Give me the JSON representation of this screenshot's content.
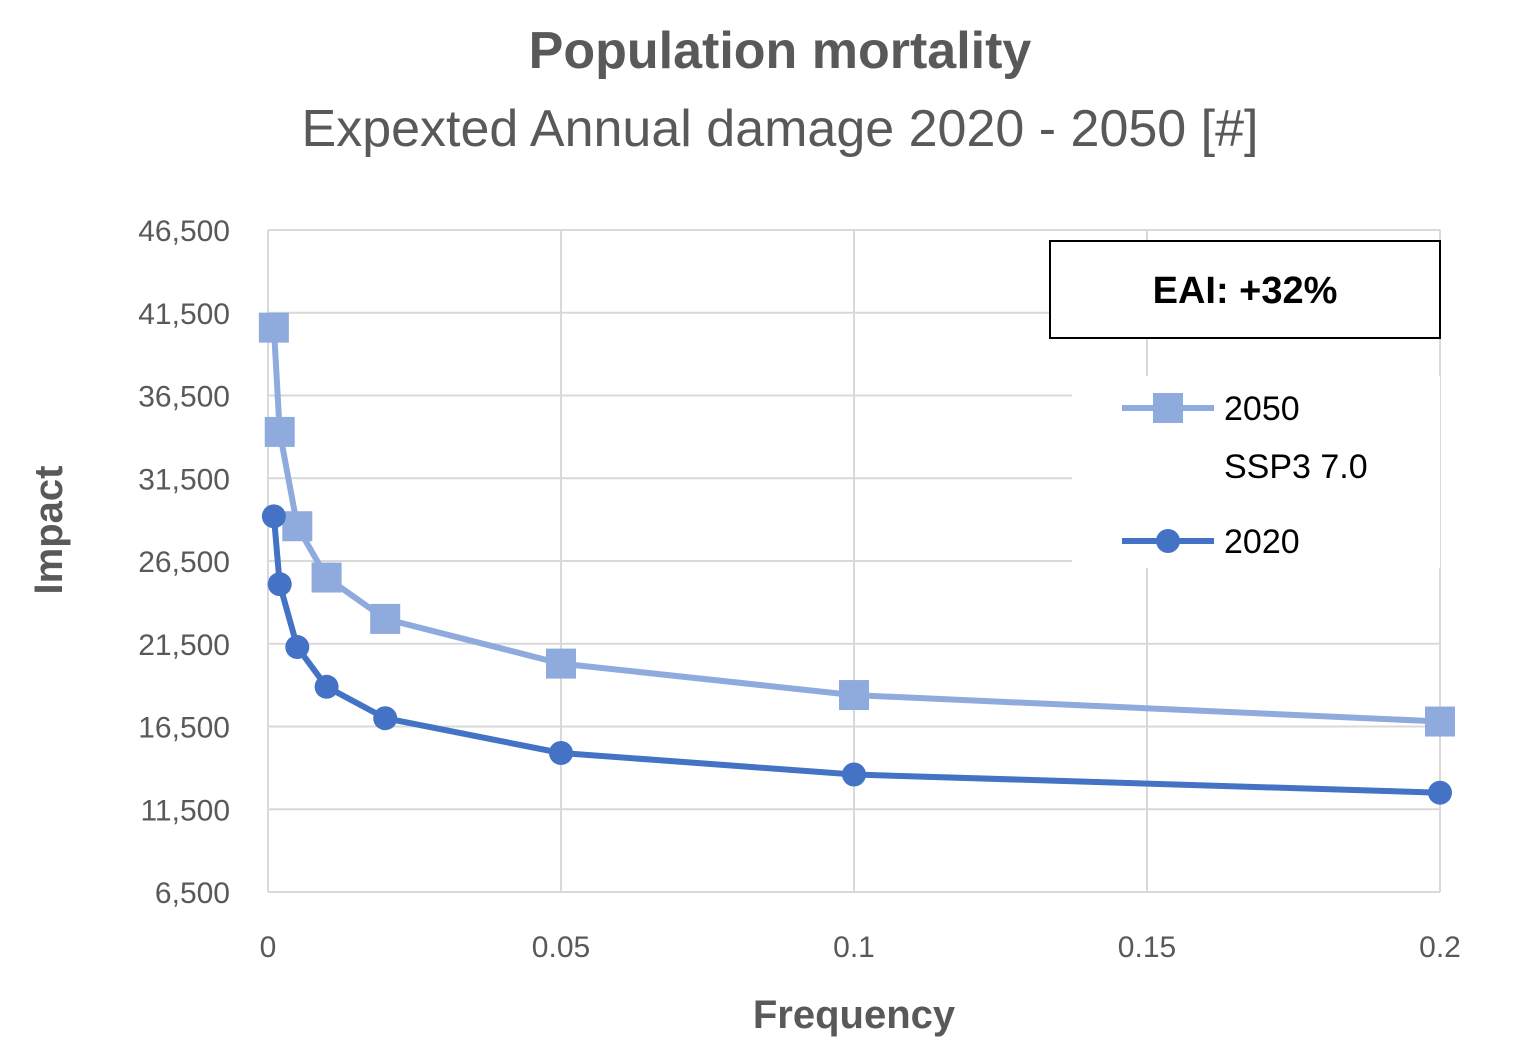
{
  "chart_data": {
    "type": "line",
    "title": "Population mortality",
    "subtitle": "Expexted Annual damage 2020 - 2050 [#]",
    "xlabel": "Frequency",
    "ylabel": "Impact",
    "xlim": [
      0,
      0.2
    ],
    "ylim": [
      6500,
      46500
    ],
    "x_ticks": [
      0,
      0.05,
      0.1,
      0.15,
      0.2
    ],
    "x_tick_labels": [
      "0",
      "0.05",
      "0.1",
      "0.15",
      "0.2"
    ],
    "y_ticks": [
      6500,
      11500,
      16500,
      21500,
      26500,
      31500,
      36500,
      41500,
      46500
    ],
    "y_tick_labels": [
      "6,500",
      "11,500",
      "16,500",
      "21,500",
      "26,500",
      "31,500",
      "36,500",
      "41,500",
      "46,500"
    ],
    "grid": true,
    "legend_position": "right",
    "annotation": "EAI: +32%",
    "series": [
      {
        "name": "2050 SSP3 7.0",
        "name_lines": [
          "2050",
          "SSP3 7.0"
        ],
        "marker": "square",
        "color": "#8faadc",
        "x": [
          0.001,
          0.002,
          0.005,
          0.01,
          0.02,
          0.05,
          0.1,
          0.2
        ],
        "y": [
          40600,
          34300,
          28600,
          25500,
          23000,
          20300,
          18400,
          16800
        ]
      },
      {
        "name": "2020",
        "name_lines": [
          "2020"
        ],
        "marker": "circle",
        "color": "#4472c4",
        "x": [
          0.001,
          0.002,
          0.005,
          0.01,
          0.02,
          0.05,
          0.1,
          0.2
        ],
        "y": [
          29200,
          25100,
          21300,
          18900,
          17000,
          14900,
          13600,
          12500
        ]
      }
    ]
  }
}
